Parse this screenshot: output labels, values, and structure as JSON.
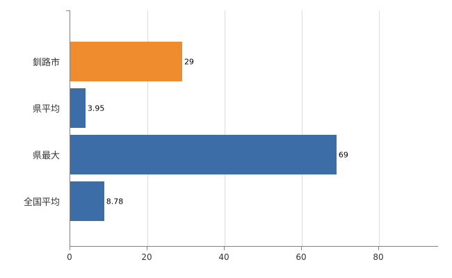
{
  "chart_data": {
    "type": "bar",
    "orientation": "horizontal",
    "title": "",
    "xlabel": "",
    "ylabel": "",
    "categories": [
      "釧路市",
      "県平均",
      "県最大",
      "全国平均"
    ],
    "values": [
      29,
      3.95,
      69,
      8.78
    ],
    "value_labels": [
      "29",
      "3.95",
      "69",
      "8.78"
    ],
    "bar_colors": [
      "#ef8c2d",
      "#3c6da6",
      "#3c6da6",
      "#3c6da6"
    ],
    "x_ticks": [
      0,
      20,
      40,
      60,
      80
    ],
    "x_tick_labels": [
      "0",
      "20",
      "40",
      "60",
      "80"
    ],
    "xlim": [
      0,
      95.5
    ],
    "grid": "vertical",
    "legend": "none"
  },
  "styles": {
    "background_color": "#ffffff",
    "grid_color": "#dcdcdc",
    "axis_color": "#808080",
    "tick_label_color": "#333333",
    "category_label_color": "#333333",
    "value_label_color": "#000000",
    "highlight_bar_color": "#ef8c2d",
    "default_bar_color": "#3c6da6"
  }
}
